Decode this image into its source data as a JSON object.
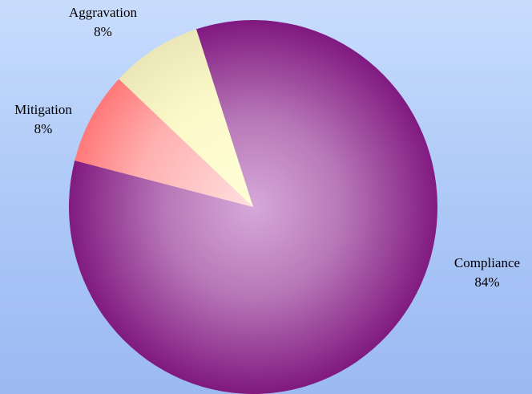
{
  "chart_data": {
    "type": "pie",
    "title": "",
    "slices": [
      {
        "label": "Compliance",
        "value": 84,
        "display": "84%",
        "color": "#8a1c85"
      },
      {
        "label": "Mitigation",
        "value": 8,
        "display": "8%",
        "color": "#ff8080"
      },
      {
        "label": "Aggravation",
        "value": 8,
        "display": "8%",
        "color": "#ffffcc"
      }
    ],
    "legend": "none",
    "labels": "outside"
  }
}
